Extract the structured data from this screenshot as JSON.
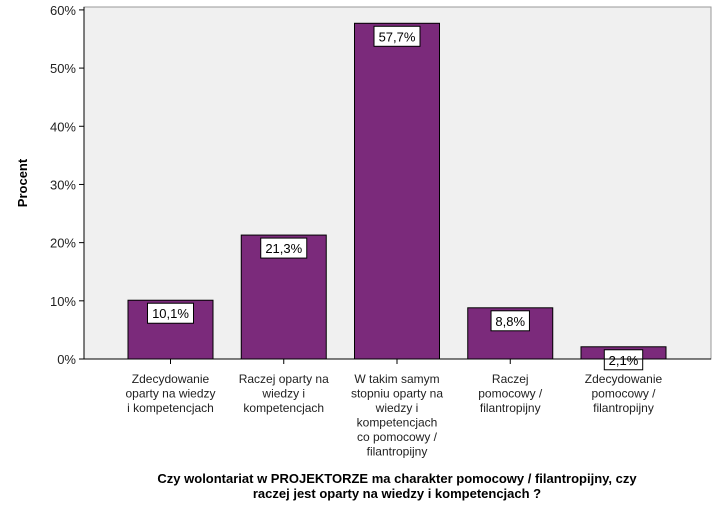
{
  "chart_data": {
    "type": "bar",
    "categories": [
      [
        "Zdecydowanie",
        "oparty na wiedzy",
        "i kompetencjach"
      ],
      [
        "Raczej oparty na",
        "wiedzy i",
        "kompetencjach"
      ],
      [
        "W takim samym",
        "stopniu oparty na",
        "wiedzy i",
        "kompetencjach",
        "co pomocowy /",
        "filantropijny"
      ],
      [
        "Raczej",
        "pomocowy /",
        "filantropijny"
      ],
      [
        "Zdecydowanie",
        "pomocowy /",
        "filantropijny"
      ]
    ],
    "values": [
      10.1,
      21.3,
      57.7,
      8.8,
      2.1
    ],
    "data_labels": [
      "10,1%",
      "21,3%",
      "57,7%",
      "8,8%",
      "2,1%"
    ],
    "xlabel_lines": [
      "Czy wolontariat w PROJEKTORZE ma charakter pomocowy / filantropijny, czy",
      "raczej jest oparty na wiedzy i kompetencjach ?"
    ],
    "ylabel": "Procent",
    "yticks": [
      0,
      10,
      20,
      30,
      40,
      50,
      60
    ],
    "ytick_labels": [
      "0%",
      "10%",
      "20%",
      "30%",
      "40%",
      "50%",
      "60%"
    ],
    "ylim": [
      0,
      60.5
    ],
    "grid": false,
    "colors": {
      "plot_bg": "#f0f0f0",
      "bar_fill": "#7b2a7b",
      "bar_stroke": "#000000",
      "axis": "#000000"
    }
  }
}
